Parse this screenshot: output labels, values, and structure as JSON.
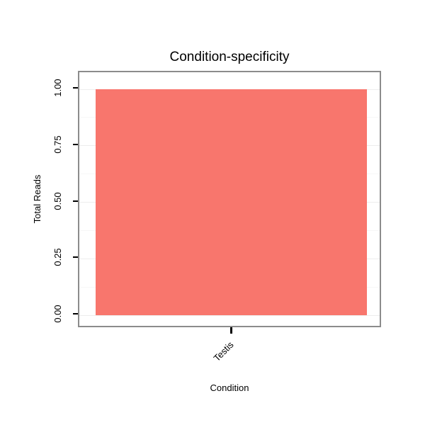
{
  "chart_data": {
    "type": "bar",
    "title": "Condition-specificity",
    "xlabel": "Condition",
    "ylabel": "Total Reads",
    "categories": [
      "Testis"
    ],
    "values": [
      1.0
    ],
    "ylim": [
      0,
      1
    ],
    "yticks": [
      {
        "value": 0.0,
        "label": "0.00"
      },
      {
        "value": 0.25,
        "label": "0.25"
      },
      {
        "value": 0.5,
        "label": "0.50"
      },
      {
        "value": 0.75,
        "label": "0.75"
      },
      {
        "value": 1.0,
        "label": "1.00"
      }
    ],
    "minor_yticks": [
      0.125,
      0.375,
      0.625,
      0.875
    ],
    "bar_color": "#F8766D",
    "panel_border_color": "#8c8c8c",
    "grid": "on",
    "legend": "none"
  }
}
